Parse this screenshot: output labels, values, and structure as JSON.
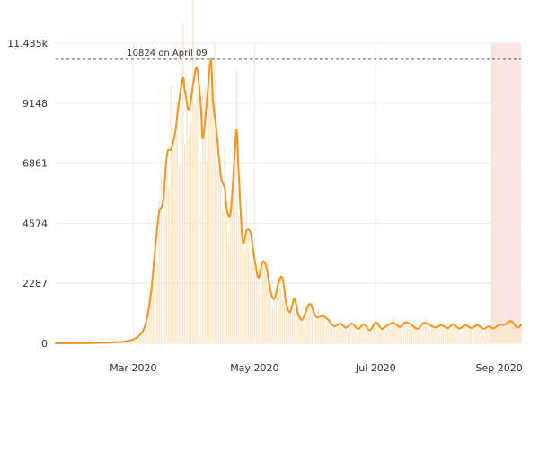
{
  "chart_data": {
    "type": "line",
    "xlabel": "",
    "ylabel": "",
    "ylim": [
      0,
      11435
    ],
    "x_range": [
      "2020-01-22",
      "2020-09-12"
    ],
    "yticks": [
      {
        "value": 0,
        "label": "0"
      },
      {
        "value": 2287,
        "label": "2287"
      },
      {
        "value": 4574,
        "label": "4574"
      },
      {
        "value": 6861,
        "label": "6861"
      },
      {
        "value": 9148,
        "label": "9148"
      },
      {
        "value": 11435,
        "label": "11.435k"
      }
    ],
    "xticks": [
      {
        "date": "2020-03-01",
        "label": "Mar 2020"
      },
      {
        "date": "2020-05-01",
        "label": "May 2020"
      },
      {
        "date": "2020-07-01",
        "label": "Jul 2020"
      },
      {
        "date": "2020-09-01",
        "label": "Sep 2020"
      }
    ],
    "max_line": {
      "value": 10824,
      "label": "10824 on April 09"
    },
    "highlight_range": [
      "2020-08-28",
      "2020-09-12"
    ],
    "grid": true,
    "series": [
      {
        "color": "#f7931e",
        "bar_color": "#fde7c8",
        "points": [
          [
            "2020-01-22",
            0
          ],
          [
            "2020-02-01",
            5
          ],
          [
            "2020-02-15",
            20
          ],
          [
            "2020-02-25",
            60
          ],
          [
            "2020-03-01",
            150
          ],
          [
            "2020-03-04",
            300
          ],
          [
            "2020-03-06",
            500
          ],
          [
            "2020-03-08",
            1000
          ],
          [
            "2020-03-10",
            2000
          ],
          [
            "2020-03-12",
            3600
          ],
          [
            "2020-03-14",
            5000
          ],
          [
            "2020-03-16",
            5400
          ],
          [
            "2020-03-18",
            7200
          ],
          [
            "2020-03-20",
            7400
          ],
          [
            "2020-03-22",
            8000
          ],
          [
            "2020-03-24",
            9200
          ],
          [
            "2020-03-26",
            10100
          ],
          [
            "2020-03-27",
            9600
          ],
          [
            "2020-03-29",
            8900
          ],
          [
            "2020-03-31",
            9800
          ],
          [
            "2020-04-02",
            10500
          ],
          [
            "2020-04-04",
            9000
          ],
          [
            "2020-04-05",
            7800
          ],
          [
            "2020-04-07",
            9200
          ],
          [
            "2020-04-09",
            10824
          ],
          [
            "2020-04-10",
            9300
          ],
          [
            "2020-04-12",
            8000
          ],
          [
            "2020-04-14",
            6400
          ],
          [
            "2020-04-16",
            5900
          ],
          [
            "2020-04-17",
            5100
          ],
          [
            "2020-04-19",
            5000
          ],
          [
            "2020-04-21",
            7200
          ],
          [
            "2020-04-22",
            8100
          ],
          [
            "2020-04-23",
            6500
          ],
          [
            "2020-04-25",
            3900
          ],
          [
            "2020-04-27",
            4300
          ],
          [
            "2020-04-29",
            4200
          ],
          [
            "2020-05-01",
            3200
          ],
          [
            "2020-05-03",
            2500
          ],
          [
            "2020-05-05",
            3100
          ],
          [
            "2020-05-07",
            2900
          ],
          [
            "2020-05-09",
            2000
          ],
          [
            "2020-05-11",
            1700
          ],
          [
            "2020-05-13",
            2300
          ],
          [
            "2020-05-15",
            2500
          ],
          [
            "2020-05-17",
            1500
          ],
          [
            "2020-05-19",
            1200
          ],
          [
            "2020-05-21",
            1700
          ],
          [
            "2020-05-23",
            1100
          ],
          [
            "2020-05-25",
            900
          ],
          [
            "2020-05-27",
            1250
          ],
          [
            "2020-05-29",
            1500
          ],
          [
            "2020-06-01",
            1000
          ],
          [
            "2020-06-04",
            1050
          ],
          [
            "2020-06-07",
            900
          ],
          [
            "2020-06-10",
            650
          ],
          [
            "2020-06-13",
            750
          ],
          [
            "2020-06-16",
            600
          ],
          [
            "2020-06-19",
            750
          ],
          [
            "2020-06-22",
            550
          ],
          [
            "2020-06-25",
            720
          ],
          [
            "2020-06-28",
            500
          ],
          [
            "2020-07-01",
            800
          ],
          [
            "2020-07-04",
            550
          ],
          [
            "2020-07-07",
            700
          ],
          [
            "2020-07-10",
            780
          ],
          [
            "2020-07-13",
            620
          ],
          [
            "2020-07-16",
            800
          ],
          [
            "2020-07-19",
            700
          ],
          [
            "2020-07-22",
            550
          ],
          [
            "2020-07-25",
            780
          ],
          [
            "2020-07-28",
            700
          ],
          [
            "2020-07-31",
            600
          ],
          [
            "2020-08-03",
            700
          ],
          [
            "2020-08-06",
            580
          ],
          [
            "2020-08-09",
            720
          ],
          [
            "2020-08-12",
            560
          ],
          [
            "2020-08-15",
            700
          ],
          [
            "2020-08-18",
            580
          ],
          [
            "2020-08-21",
            700
          ],
          [
            "2020-08-24",
            550
          ],
          [
            "2020-08-27",
            650
          ],
          [
            "2020-08-29",
            560
          ],
          [
            "2020-09-01",
            700
          ],
          [
            "2020-09-04",
            720
          ],
          [
            "2020-09-07",
            850
          ],
          [
            "2020-09-10",
            600
          ],
          [
            "2020-09-12",
            700
          ]
        ]
      }
    ]
  }
}
